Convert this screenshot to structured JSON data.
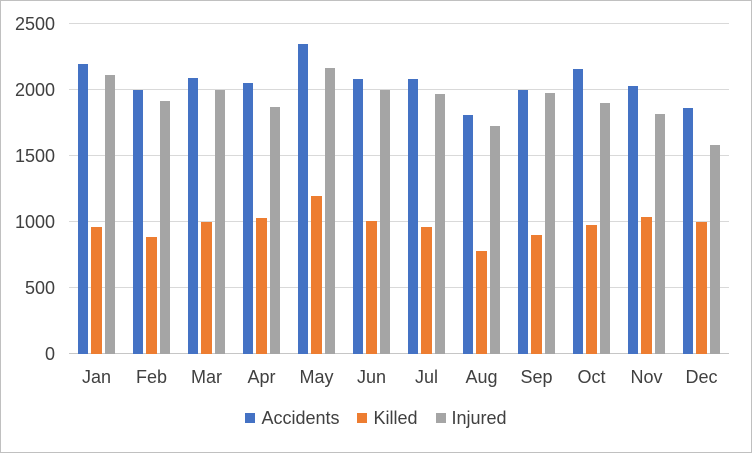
{
  "chart_data": {
    "type": "bar",
    "title": "",
    "categories": [
      "Jan",
      "Feb",
      "Mar",
      "Apr",
      "May",
      "Jun",
      "Jul",
      "Aug",
      "Sep",
      "Oct",
      "Nov",
      "Dec"
    ],
    "series": [
      {
        "name": "Accidents",
        "color": "#4472C4",
        "values": [
          2200,
          2000,
          2090,
          2050,
          2350,
          2080,
          2080,
          1810,
          2000,
          2160,
          2030,
          1860
        ]
      },
      {
        "name": "Killed",
        "color": "#ED7D31",
        "values": [
          960,
          890,
          1000,
          1030,
          1200,
          1010,
          960,
          780,
          900,
          980,
          1040,
          1000
        ]
      },
      {
        "name": "Injured",
        "color": "#A5A5A5",
        "values": [
          2110,
          1920,
          2000,
          1870,
          2170,
          2000,
          1970,
          1730,
          1980,
          1900,
          1820,
          1580
        ]
      }
    ],
    "xlabel": "",
    "ylabel": "",
    "ylim": [
      0,
      2500
    ],
    "yticks": [
      0,
      500,
      1000,
      1500,
      2000,
      2500
    ],
    "grid": true,
    "legend_position": "bottom"
  },
  "colors": {
    "accent_blue": "#4472C4",
    "accent_orange": "#ED7D31",
    "accent_gray": "#A5A5A5",
    "gridline": "#D9D9D9",
    "axis_line": "#C6C6C6",
    "text": "#404040",
    "frame_border": "#C0C0C0",
    "background": "#FFFFFF"
  }
}
